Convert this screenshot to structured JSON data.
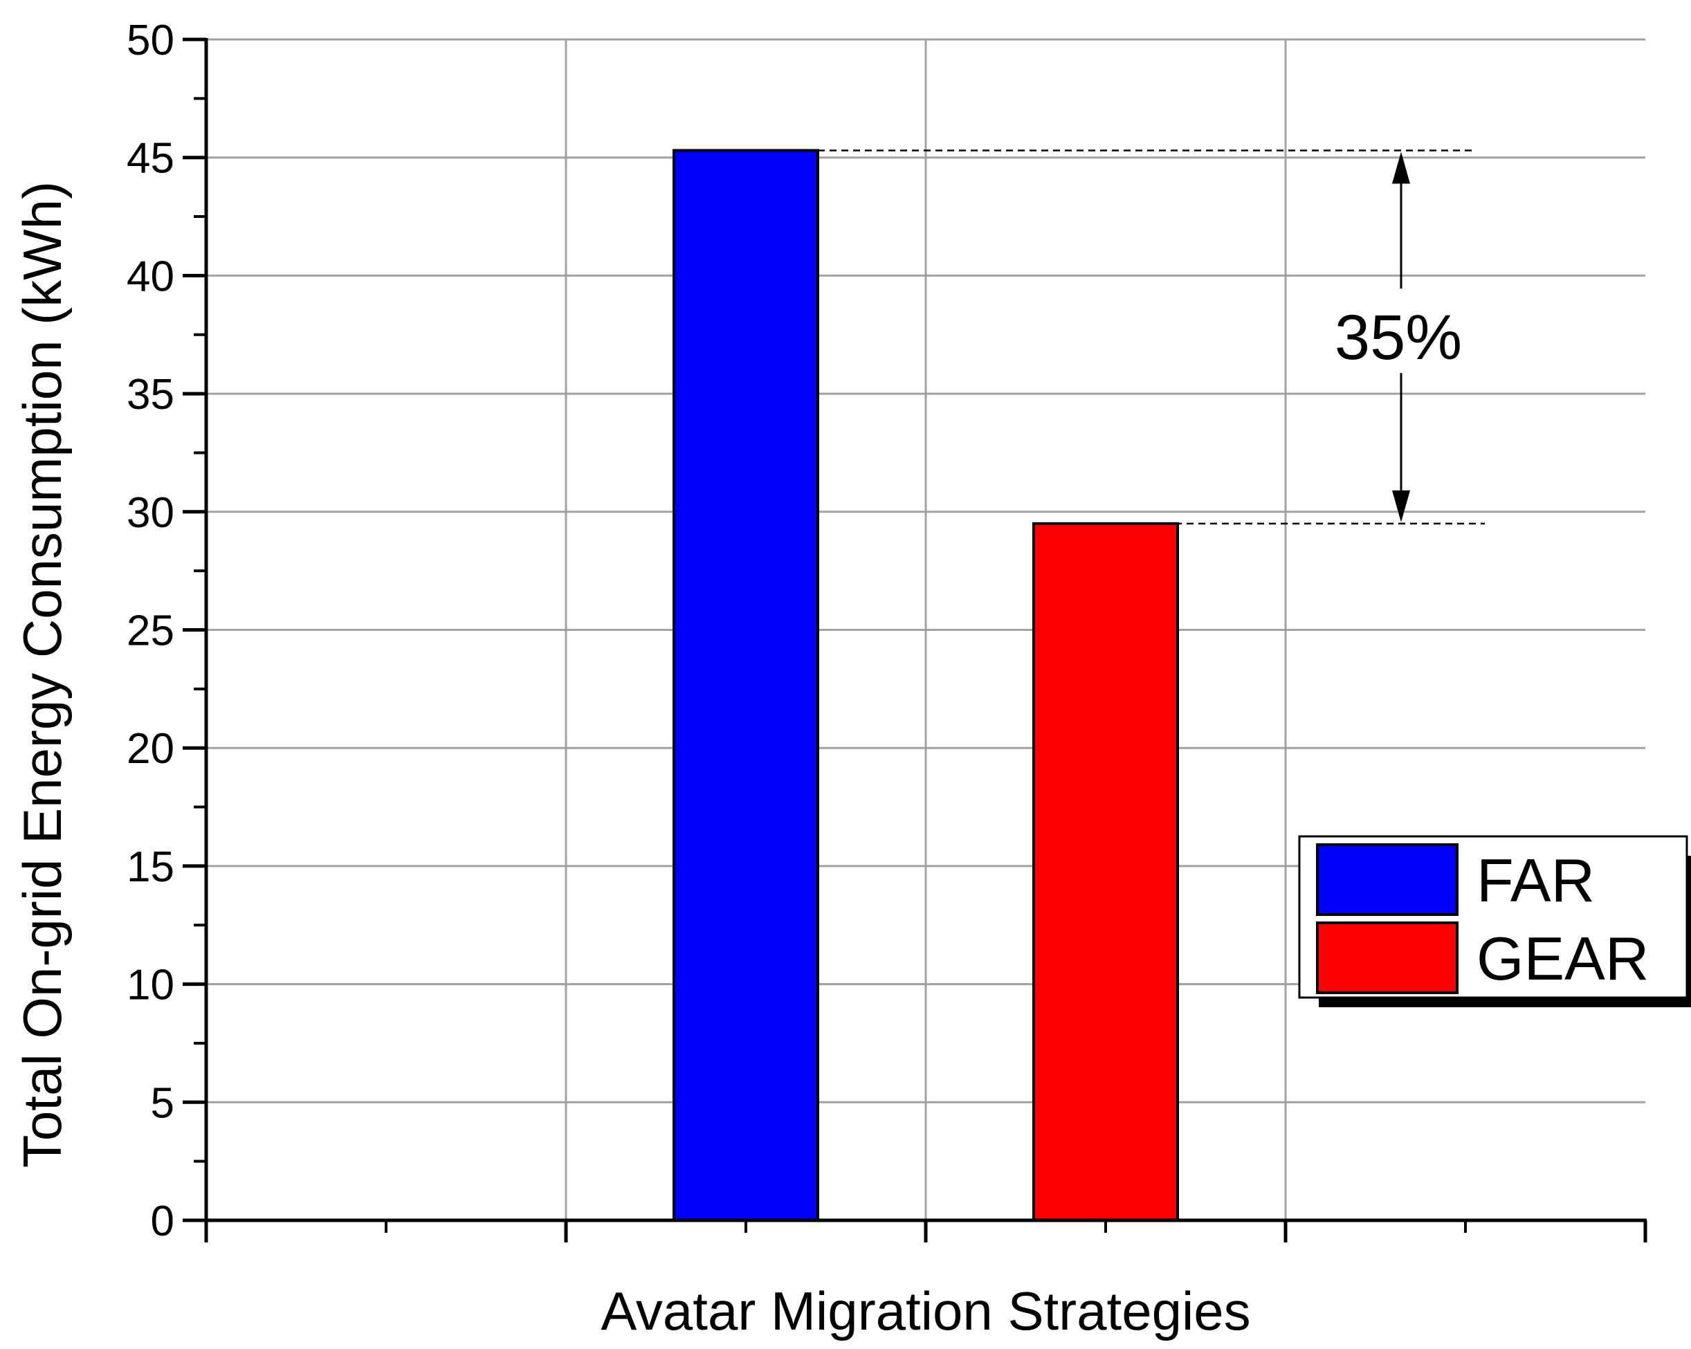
{
  "chart_data": {
    "type": "bar",
    "title": "",
    "xlabel": "Avatar Migration Strategies",
    "ylabel": "Total On-grid Energy Consumption (kWh)",
    "ylim": [
      0,
      50
    ],
    "yticks": [
      0,
      5,
      10,
      15,
      20,
      25,
      30,
      35,
      40,
      45,
      50
    ],
    "grid": true,
    "legend_position": "right",
    "series": [
      {
        "name": "FAR",
        "value": 45.3,
        "color": "#0000ff"
      },
      {
        "name": "GEAR",
        "value": 29.5,
        "color": "#ff0000"
      }
    ],
    "annotation": {
      "text": "35%",
      "from": 45.3,
      "to": 29.5
    }
  }
}
